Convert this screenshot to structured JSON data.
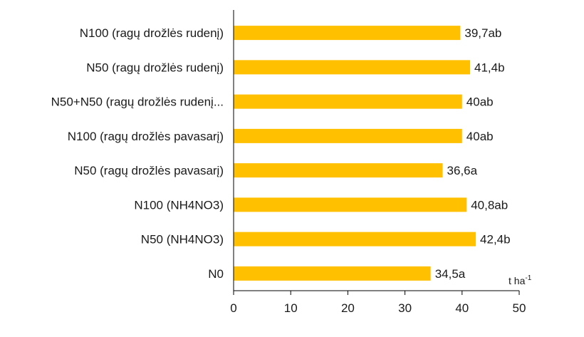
{
  "chart_data": {
    "type": "bar",
    "orientation": "horizontal",
    "categories": [
      "N100 (ragų drožlės rudenį)",
      "N50 (ragų drožlės rudenį)",
      "N50+N50  (ragų drožlės rudenį...",
      "N100 (ragų drožlės pavasarį)",
      "N50 (ragų drožlės pavasarį)",
      "N100 (NH4NO3)",
      "N50 (NH4NO3)",
      "N0"
    ],
    "values": [
      39.7,
      41.4,
      40,
      40,
      36.6,
      40.8,
      42.4,
      34.5
    ],
    "data_labels": [
      "39,7ab",
      "41,4b",
      "40ab",
      "40ab",
      "36,6a",
      "40,8ab",
      "42,4b",
      "34,5a"
    ],
    "xlim": [
      0,
      50
    ],
    "xticks": [
      0,
      10,
      20,
      30,
      40,
      50
    ],
    "xtick_labels": [
      "0",
      "10",
      "20",
      "30",
      "40",
      "50"
    ],
    "unit_label": "t ha",
    "unit_superscript": "-1",
    "bar_color": "#FFC000",
    "grid": false,
    "legend": "none"
  }
}
